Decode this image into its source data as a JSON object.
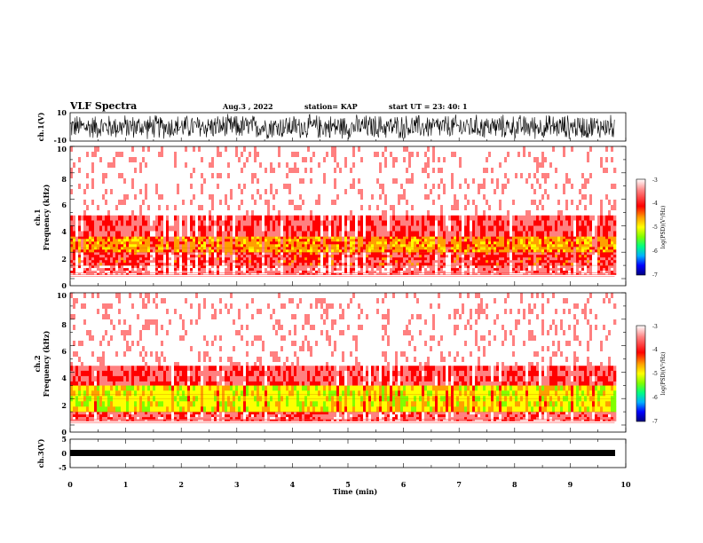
{
  "header": {
    "title": "VLF Spectra",
    "date": "Aug.3 , 2022",
    "station": "station= KAP",
    "start": "start UT = 23: 40: 1"
  },
  "colors": {
    "waveform": "#000000",
    "spectrogram_background": "#ffffff",
    "colorbar": [
      "#000080",
      "#0000ff",
      "#00b0ff",
      "#00ff80",
      "#80ff00",
      "#ffff00",
      "#ffa000",
      "#ff0000",
      "#ff8080",
      "#ffffff"
    ]
  },
  "chart_data": [
    {
      "type": "line",
      "panel": "ch.1 waveform",
      "ylabel": "ch.1(V)",
      "ylim": [
        -10,
        10
      ],
      "y_ticks": [
        "10",
        "-10"
      ],
      "xlim": [
        0,
        10
      ],
      "x_unit": "min",
      "description_values": {
        "amplitude_range_V": [
          -9.5,
          9.5
        ]
      }
    },
    {
      "type": "heatmap",
      "panel": "ch.1 spectrogram",
      "ylabel": "ch.1 Frequency (kHz)",
      "ylabel_lines": [
        "ch.1",
        "Frequency (kHz)"
      ],
      "ylim": [
        0,
        10
      ],
      "y_ticks": [
        "0",
        "2",
        "4",
        "6",
        "8",
        "10"
      ],
      "xlim": [
        0,
        9.8
      ],
      "colorbar": {
        "label": "log(PSD)(V²/Hz)",
        "range": [
          -7,
          -3
        ],
        "ticks": [
          "-3",
          "-4",
          "-5",
          "-6",
          "-7"
        ]
      },
      "bands_kHz": [
        {
          "from": 0.3,
          "to": 1.0,
          "level": -3.6
        },
        {
          "from": 1.0,
          "to": 2.0,
          "level": -3.9
        },
        {
          "from": 2.0,
          "to": 3.2,
          "level": -4.4
        },
        {
          "from": 3.2,
          "to": 4.8,
          "level": -3.8
        },
        {
          "from": 4.8,
          "to": 10.0,
          "level": -3.2
        }
      ]
    },
    {
      "type": "heatmap",
      "panel": "ch.2 spectrogram",
      "ylabel": "ch.2 Frequency (kHz)",
      "ylabel_lines": [
        "ch.2",
        "Frequency (kHz)"
      ],
      "ylim": [
        0,
        10
      ],
      "y_ticks": [
        "0",
        "2",
        "4",
        "6",
        "8",
        "10"
      ],
      "xlim": [
        0,
        9.8
      ],
      "colorbar": {
        "label": "log(PSD)(V²/Hz)",
        "range": [
          -7,
          -3
        ],
        "ticks": [
          "-3",
          "-4",
          "-5",
          "-6",
          "-7"
        ]
      },
      "bands_kHz": [
        {
          "from": 0.3,
          "to": 1.0,
          "level": -3.7
        },
        {
          "from": 1.0,
          "to": 3.0,
          "level": -4.8
        },
        {
          "from": 3.0,
          "to": 4.5,
          "level": -3.8
        },
        {
          "from": 4.5,
          "to": 10.0,
          "level": -3.2
        }
      ]
    },
    {
      "type": "line",
      "panel": "ch.3 waveform",
      "ylabel": "ch.3(V)",
      "ylim": [
        -5,
        5
      ],
      "y_ticks": [
        "5",
        "0",
        "-5"
      ],
      "xlim": [
        0,
        10
      ],
      "xlabel": "Time (min)",
      "x_ticks": [
        "0",
        "1",
        "2",
        "3",
        "4",
        "5",
        "6",
        "7",
        "8",
        "9",
        "10"
      ],
      "description_values": {
        "amplitude_range_V": [
          -0.3,
          0.3
        ]
      }
    }
  ]
}
